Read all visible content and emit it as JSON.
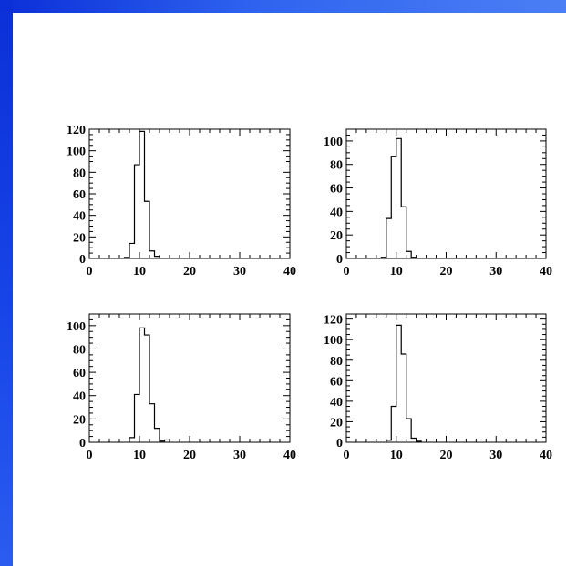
{
  "colors": {
    "accent": "#1a47e6",
    "background": "#ffffff",
    "line": "#000000"
  },
  "chart_data": [
    {
      "type": "histogram",
      "xlim": [
        0,
        40
      ],
      "ylim": [
        0,
        120
      ],
      "xticks": [
        0,
        10,
        20,
        30,
        40
      ],
      "yticks": [
        0,
        20,
        40,
        60,
        80,
        100,
        120
      ],
      "bin_width": 1,
      "bins": [
        {
          "x0": 7,
          "value": 1
        },
        {
          "x0": 8,
          "value": 14
        },
        {
          "x0": 9,
          "value": 87
        },
        {
          "x0": 10,
          "value": 118
        },
        {
          "x0": 11,
          "value": 53
        },
        {
          "x0": 12,
          "value": 7
        },
        {
          "x0": 13,
          "value": 2
        }
      ],
      "grid": false
    },
    {
      "type": "histogram",
      "xlim": [
        0,
        40
      ],
      "ylim": [
        0,
        110
      ],
      "xticks": [
        0,
        10,
        20,
        30,
        40
      ],
      "yticks": [
        0,
        20,
        40,
        60,
        80,
        100
      ],
      "bin_width": 1,
      "bins": [
        {
          "x0": 7,
          "value": 1
        },
        {
          "x0": 8,
          "value": 34
        },
        {
          "x0": 9,
          "value": 87
        },
        {
          "x0": 10,
          "value": 102
        },
        {
          "x0": 11,
          "value": 44
        },
        {
          "x0": 12,
          "value": 6
        },
        {
          "x0": 13,
          "value": 1
        }
      ],
      "grid": false
    },
    {
      "type": "histogram",
      "xlim": [
        0,
        40
      ],
      "ylim": [
        0,
        110
      ],
      "xticks": [
        0,
        10,
        20,
        30,
        40
      ],
      "yticks": [
        0,
        20,
        40,
        60,
        80,
        100
      ],
      "bin_width": 1,
      "bins": [
        {
          "x0": 8,
          "value": 4
        },
        {
          "x0": 9,
          "value": 41
        },
        {
          "x0": 10,
          "value": 98
        },
        {
          "x0": 11,
          "value": 92
        },
        {
          "x0": 12,
          "value": 33
        },
        {
          "x0": 13,
          "value": 12
        },
        {
          "x0": 14,
          "value": 1
        },
        {
          "x0": 15,
          "value": 2
        }
      ],
      "grid": false
    },
    {
      "type": "histogram",
      "xlim": [
        0,
        40
      ],
      "ylim": [
        0,
        125
      ],
      "xticks": [
        0,
        10,
        20,
        30,
        40
      ],
      "yticks": [
        0,
        20,
        40,
        60,
        80,
        100,
        120
      ],
      "bin_width": 1,
      "bins": [
        {
          "x0": 8,
          "value": 2
        },
        {
          "x0": 9,
          "value": 35
        },
        {
          "x0": 10,
          "value": 114
        },
        {
          "x0": 11,
          "value": 86
        },
        {
          "x0": 12,
          "value": 23
        },
        {
          "x0": 13,
          "value": 4
        },
        {
          "x0": 14,
          "value": 1
        }
      ],
      "grid": false
    }
  ]
}
